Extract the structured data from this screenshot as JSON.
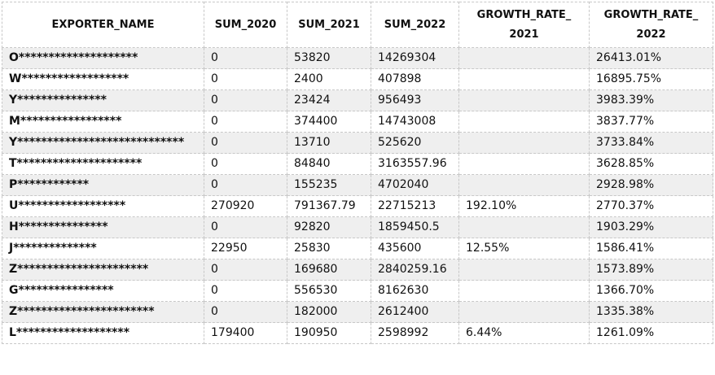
{
  "table": {
    "columns": [
      "EXPORTER_NAME",
      "SUM_2020",
      "SUM_2021",
      "SUM_2022",
      "GROWTH_RATE_2021",
      "GROWTH_RATE_2022"
    ],
    "rows": [
      [
        "O********************",
        "0",
        "53820",
        "14269304",
        null,
        "26413.01%"
      ],
      [
        "W******************",
        "0",
        "2400",
        "407898",
        null,
        "16895.75%"
      ],
      [
        "Y***************",
        "0",
        "23424",
        "956493",
        null,
        "3983.39%"
      ],
      [
        "M*****************",
        "0",
        "374400",
        "14743008",
        null,
        "3837.77%"
      ],
      [
        "Y****************************",
        "0",
        "13710",
        "525620",
        null,
        "3733.84%"
      ],
      [
        "T*********************",
        "0",
        "84840",
        "3163557.96",
        null,
        "3628.85%"
      ],
      [
        "P************",
        "0",
        "155235",
        "4702040",
        null,
        "2928.98%"
      ],
      [
        "U******************",
        "270920",
        "791367.79",
        "22715213",
        "192.10%",
        "2770.37%"
      ],
      [
        "H***************",
        "0",
        "92820",
        "1859450.5",
        null,
        "1903.29%"
      ],
      [
        "J**************",
        "22950",
        "25830",
        "435600",
        "12.55%",
        "1586.41%"
      ],
      [
        "Z**********************",
        "0",
        "169680",
        "2840259.16",
        null,
        "1573.89%"
      ],
      [
        "G****************",
        "0",
        "556530",
        "8162630",
        null,
        "1366.70%"
      ],
      [
        "Z***********************",
        "0",
        "182000",
        "2612400",
        null,
        "1335.38%"
      ],
      [
        "L*******************",
        "179400",
        "190950",
        "2598992",
        "6.44%",
        "1261.09%"
      ]
    ]
  }
}
